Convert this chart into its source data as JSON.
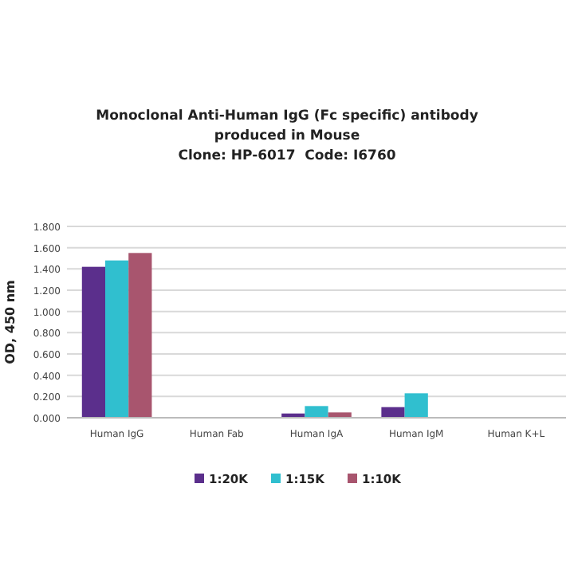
{
  "chart_data": {
    "type": "bar",
    "title": "Monoclonal Anti-Human IgG (Fc specific) antibody\nproduced in Mouse\nClone: HP-6017  Code: I6760",
    "ylabel": "OD, 450 nm",
    "categories": [
      "Human IgG",
      "Human Fab",
      "Human IgA",
      "Human IgM",
      "Human K+L"
    ],
    "series": [
      {
        "name": "1:20K",
        "color": "#5b2f8c",
        "values": [
          1.42,
          0,
          0.04,
          0.1,
          0
        ]
      },
      {
        "name": "1:15K",
        "color": "#30bfcf",
        "values": [
          1.48,
          0,
          0.11,
          0.23,
          0
        ]
      },
      {
        "name": "1:10K",
        "color": "#a8556e",
        "values": [
          1.55,
          0,
          0.05,
          0,
          0
        ]
      }
    ],
    "ylim": [
      0,
      1.8
    ],
    "yticks": [
      {
        "value": 0,
        "label": "0.000"
      },
      {
        "value": 0.2,
        "label": "0.200"
      },
      {
        "value": 0.4,
        "label": "0.400"
      },
      {
        "value": 0.6,
        "label": "0.600"
      },
      {
        "value": 0.8,
        "label": "0.800"
      },
      {
        "value": 1,
        "label": "1.000"
      },
      {
        "value": 1.2,
        "label": "1.200"
      },
      {
        "value": 1.4,
        "label": "1.400"
      },
      {
        "value": 1.6,
        "label": "1.600"
      },
      {
        "value": 1.8,
        "label": "1.800"
      }
    ],
    "grid": "y",
    "legend": "bottom"
  }
}
